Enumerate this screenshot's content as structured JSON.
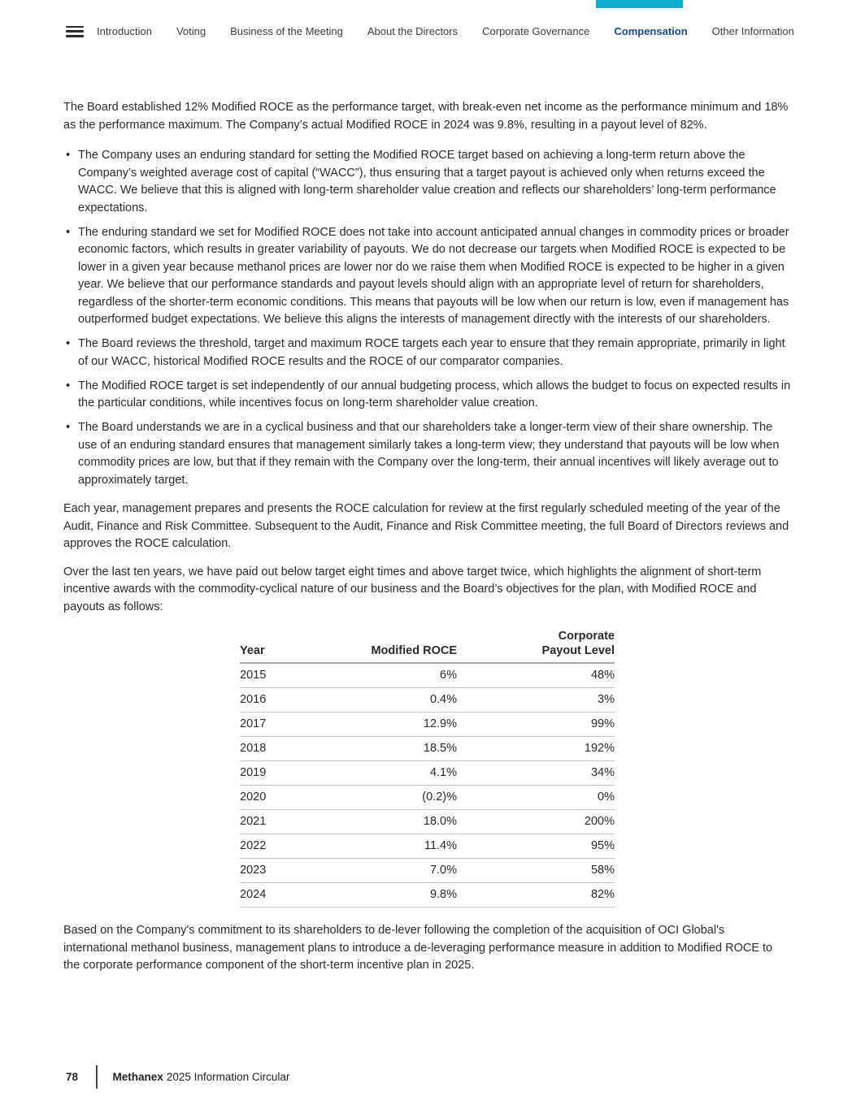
{
  "colors": {
    "accent_teal": "#10AECE",
    "nav_active": "#1B4790"
  },
  "nav": {
    "items": [
      {
        "label": "Introduction",
        "active": false
      },
      {
        "label": "Voting",
        "active": false
      },
      {
        "label": "Business of the Meeting",
        "active": false
      },
      {
        "label": "About the Directors",
        "active": false
      },
      {
        "label": "Corporate Governance",
        "active": false
      },
      {
        "label": "Compensation",
        "active": true
      },
      {
        "label": "Other Information",
        "active": false
      }
    ]
  },
  "content": {
    "para1": "The Board established 12% Modified ROCE as the performance target, with break-even net income as the performance minimum and 18% as the performance maximum. The Company’s actual Modified ROCE in 2024 was 9.8%, resulting in a payout level of 82%.",
    "bullets": [
      "The Company uses an enduring standard for setting the Modified ROCE target based on achieving a long-term return above the Company’s weighted average cost of capital (“WACC”), thus ensuring that a target payout is achieved only when returns exceed the WACC. We believe that this is aligned with long-term shareholder value creation and reflects our shareholders’ long-term performance expectations.",
      "The enduring standard we set for Modified ROCE does not take into account anticipated annual changes in commodity prices or broader economic factors, which results in greater variability of payouts. We do not decrease our targets when Modified ROCE is expected to be lower in a given year because methanol prices are lower nor do we raise them when Modified ROCE is expected to be higher in a given year. We believe that our performance standards and payout levels should align with an appropriate level of return for shareholders, regardless of the shorter-term economic conditions. This means that payouts will be low when our return is low, even if management has outperformed budget expectations. We believe this aligns the interests of management directly with the interests of our shareholders.",
      "The Board reviews the threshold, target and maximum ROCE targets each year to ensure that they remain appropriate, primarily in light of our WACC, historical Modified ROCE results and the ROCE of our comparator companies.",
      "The Modified ROCE target is set independently of our annual budgeting process, which allows the budget to focus on expected results in the particular conditions, while incentives focus on long-term shareholder value creation.",
      "The Board understands we are in a cyclical business and that our shareholders take a longer-term view of their share ownership. The use of an enduring standard ensures that management similarly takes a long-term view; they understand that payouts will be low when commodity prices are low, but that if they remain with the Company over the long-term, their annual incentives will likely average out to approximately target."
    ],
    "para2": "Each year, management prepares and presents the ROCE calculation for review at the first regularly scheduled meeting of the year of the Audit, Finance and Risk Committee. Subsequent to the Audit, Finance and Risk Committee meeting, the full Board of Directors reviews and approves the ROCE calculation.",
    "para3": "Over the last ten years, we have paid out below target eight times and above target twice, which highlights the alignment of short-term incentive awards with the commodity-cyclical nature of our business and the Board’s objectives for the plan, with Modified ROCE and payouts as follows:",
    "para4": "Based on the Company's commitment to its shareholders to de-lever following the completion of the acquisition of OCI Global's international methanol business, management plans to introduce a de-leveraging performance measure in addition to Modified ROCE to the corporate performance component of the short-term incentive plan in 2025."
  },
  "table": {
    "header_year": "Year",
    "header_roce": "Modified ROCE",
    "header_payout_line1": "Corporate",
    "header_payout_line2": "Payout Level",
    "rows": [
      [
        "2015",
        "6%",
        "48%"
      ],
      [
        "2016",
        "0.4%",
        "3%"
      ],
      [
        "2017",
        "12.9%",
        "99%"
      ],
      [
        "2018",
        "18.5%",
        "192%"
      ],
      [
        "2019",
        "4.1%",
        "34%"
      ],
      [
        "2020",
        "(0.2)%",
        "0%"
      ],
      [
        "2021",
        "18.0%",
        "200%"
      ],
      [
        "2022",
        "11.4%",
        "95%"
      ],
      [
        "2023",
        "7.0%",
        "58%"
      ],
      [
        "2024",
        "9.8%",
        "82%"
      ]
    ]
  },
  "footer": {
    "page_number": "78",
    "brand": "Methanex",
    "title": "2025 Information Circular"
  }
}
